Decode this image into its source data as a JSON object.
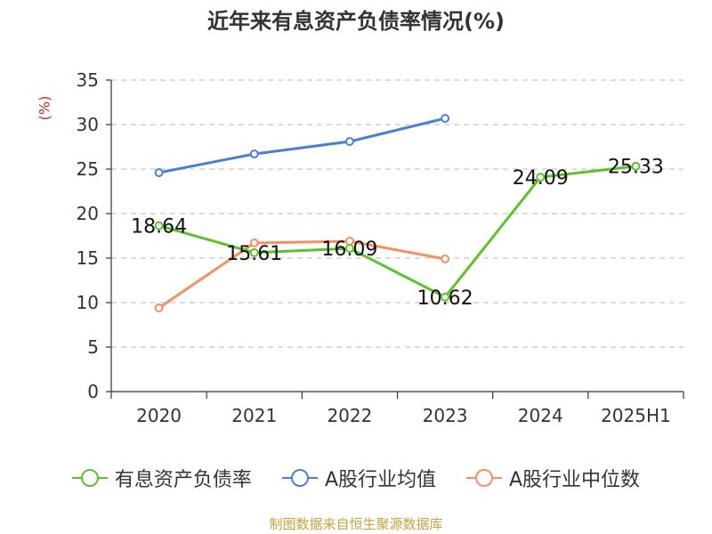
{
  "title": "近年来有息资产负债率情况(%)",
  "unit_label": "(%)",
  "source": "制图数据来自恒生聚源数据库",
  "chart_data": {
    "type": "line",
    "title": "近年来有息资产负债率情况(%)",
    "xlabel": "",
    "ylabel": "(%)",
    "categories": [
      "2020",
      "2021",
      "2022",
      "2023",
      "2024",
      "2025H1"
    ],
    "ylim": [
      0,
      35
    ],
    "yticks": [
      0,
      5,
      10,
      15,
      20,
      25,
      30,
      35
    ],
    "grid": true,
    "legend_position": "bottom",
    "series": [
      {
        "name": "有息资产负债率",
        "color": "#5cc22a",
        "values": [
          18.64,
          15.61,
          16.09,
          10.62,
          24.09,
          25.33
        ],
        "labels": [
          "18.64",
          "15.61",
          "16.09",
          "10.62",
          "24.09",
          "25.33"
        ]
      },
      {
        "name": "A股行业均值",
        "color": "#4a7fd4",
        "values": [
          24.6,
          26.7,
          28.1,
          30.7,
          null,
          null
        ]
      },
      {
        "name": "A股行业中位数",
        "color": "#f59062",
        "values": [
          9.4,
          16.7,
          16.9,
          14.9,
          null,
          null
        ]
      }
    ]
  }
}
